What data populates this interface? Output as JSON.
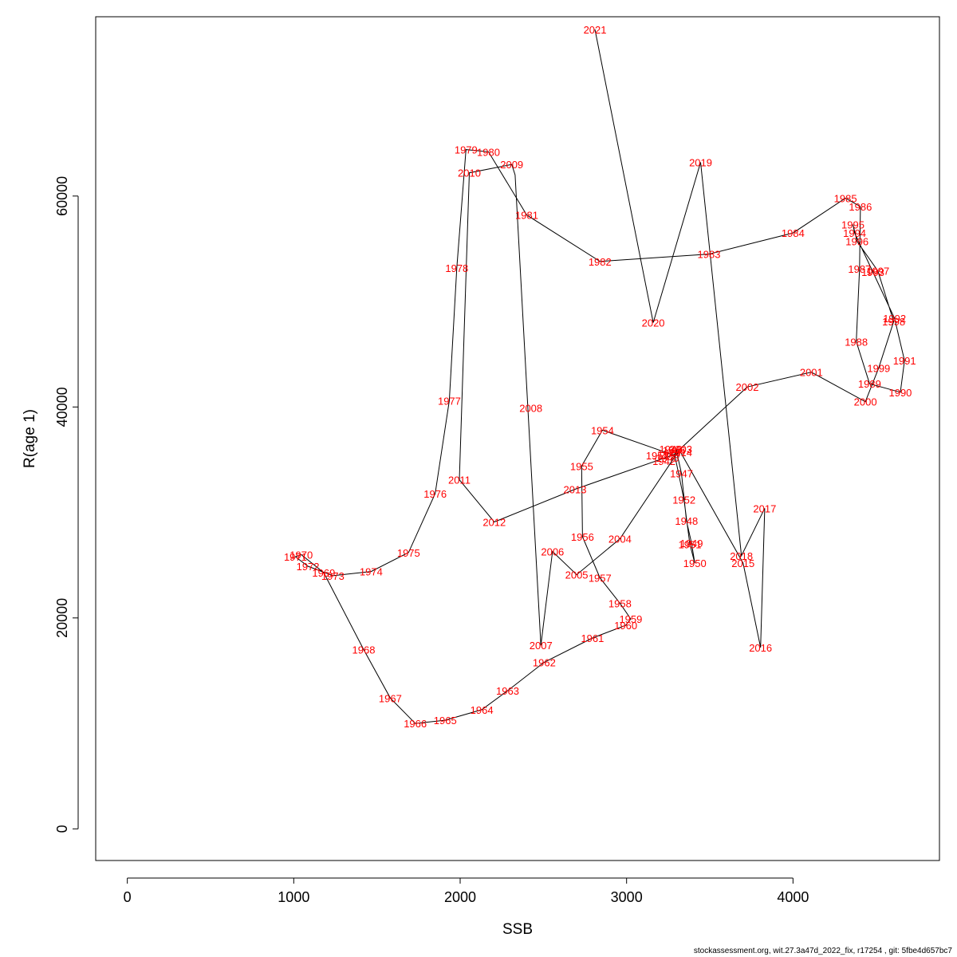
{
  "chart_data": {
    "type": "line",
    "title": "",
    "xlabel": "SSB",
    "ylabel": "R(age 1)",
    "xlim": [
      -190,
      4880
    ],
    "ylim": [
      -3000,
      77000
    ],
    "x_ticks": [
      0,
      1000,
      2000,
      3000,
      4000
    ],
    "y_ticks": [
      0,
      20000,
      40000,
      60000
    ],
    "grid": false,
    "legend": "none",
    "series_color": "#000000",
    "label_color": "#ff0000",
    "points": [
      {
        "year": "1942",
        "x": 3270,
        "y": 35000
      },
      {
        "year": "1943",
        "x": 3305,
        "y": 36000
      },
      {
        "year": "1944",
        "x": 3295,
        "y": 35500
      },
      {
        "year": "1945",
        "x": 3290,
        "y": 35200
      },
      {
        "year": "1946",
        "x": 3300,
        "y": 35800
      },
      {
        "year": "1947",
        "x": 3330,
        "y": 33700
      },
      {
        "year": "1948",
        "x": 3360,
        "y": 29200
      },
      {
        "year": "1949",
        "x": 3390,
        "y": 27100
      },
      {
        "year": "1950",
        "x": 3410,
        "y": 25200
      },
      {
        "year": "1951",
        "x": 3380,
        "y": 27000
      },
      {
        "year": "1952",
        "x": 3345,
        "y": 31200
      },
      {
        "year": "1953",
        "x": 3290,
        "y": 35400
      },
      {
        "year": "1954",
        "x": 2855,
        "y": 37800
      },
      {
        "year": "1955",
        "x": 2730,
        "y": 34400
      },
      {
        "year": "1956",
        "x": 2735,
        "y": 27700
      },
      {
        "year": "1957",
        "x": 2840,
        "y": 23800
      },
      {
        "year": "1958",
        "x": 2960,
        "y": 21400
      },
      {
        "year": "1959",
        "x": 3025,
        "y": 19900
      },
      {
        "year": "1960",
        "x": 2995,
        "y": 19300
      },
      {
        "year": "1961",
        "x": 2795,
        "y": 18100
      },
      {
        "year": "1962",
        "x": 2505,
        "y": 15800
      },
      {
        "year": "1963",
        "x": 2285,
        "y": 13100
      },
      {
        "year": "1964",
        "x": 2130,
        "y": 11300
      },
      {
        "year": "1965",
        "x": 1910,
        "y": 10300
      },
      {
        "year": "1966",
        "x": 1730,
        "y": 10000
      },
      {
        "year": "1967",
        "x": 1580,
        "y": 12400
      },
      {
        "year": "1968",
        "x": 1420,
        "y": 17000
      },
      {
        "year": "1969",
        "x": 1180,
        "y": 24300
      },
      {
        "year": "1970",
        "x": 1045,
        "y": 26000
      },
      {
        "year": "1971",
        "x": 1010,
        "y": 25800
      },
      {
        "year": "1972",
        "x": 1085,
        "y": 24900
      },
      {
        "year": "1973",
        "x": 1235,
        "y": 24000
      },
      {
        "year": "1974",
        "x": 1465,
        "y": 24400
      },
      {
        "year": "1975",
        "x": 1690,
        "y": 26200
      },
      {
        "year": "1976",
        "x": 1850,
        "y": 31800
      },
      {
        "year": "1977",
        "x": 1935,
        "y": 40600
      },
      {
        "year": "1978",
        "x": 1980,
        "y": 53200
      },
      {
        "year": "1979",
        "x": 2035,
        "y": 64400
      },
      {
        "year": "1980",
        "x": 2170,
        "y": 64200
      },
      {
        "year": "1981",
        "x": 2400,
        "y": 58200
      },
      {
        "year": "1982",
        "x": 2840,
        "y": 53800
      },
      {
        "year": "1983",
        "x": 3495,
        "y": 54500
      },
      {
        "year": "1984",
        "x": 4000,
        "y": 56500
      },
      {
        "year": "1985",
        "x": 4315,
        "y": 59800
      },
      {
        "year": "1986",
        "x": 4405,
        "y": 59000
      },
      {
        "year": "1987",
        "x": 4400,
        "y": 53100
      },
      {
        "year": "1988",
        "x": 4380,
        "y": 46200
      },
      {
        "year": "1989",
        "x": 4460,
        "y": 42200
      },
      {
        "year": "1990",
        "x": 4645,
        "y": 41400
      },
      {
        "year": "1991",
        "x": 4670,
        "y": 44400
      },
      {
        "year": "1992",
        "x": 4610,
        "y": 48400
      },
      {
        "year": "1993",
        "x": 4480,
        "y": 52800
      },
      {
        "year": "1994",
        "x": 4370,
        "y": 56500
      },
      {
        "year": "1995",
        "x": 4360,
        "y": 57300
      },
      {
        "year": "1996",
        "x": 4385,
        "y": 55700
      },
      {
        "year": "1997",
        "x": 4510,
        "y": 52900
      },
      {
        "year": "1998",
        "x": 4605,
        "y": 48100
      },
      {
        "year": "1999",
        "x": 4515,
        "y": 43700
      },
      {
        "year": "2000",
        "x": 4435,
        "y": 40500
      },
      {
        "year": "2001",
        "x": 4110,
        "y": 43300
      },
      {
        "year": "2002",
        "x": 3725,
        "y": 41900
      },
      {
        "year": "2003",
        "x": 3320,
        "y": 36000
      },
      {
        "year": "2004",
        "x": 2960,
        "y": 27500
      },
      {
        "year": "2005",
        "x": 2700,
        "y": 24100
      },
      {
        "year": "2006",
        "x": 2555,
        "y": 26300
      },
      {
        "year": "2007",
        "x": 2485,
        "y": 17400
      },
      {
        "year": "2008",
        "x": 2330,
        "y": 62000
      },
      {
        "year": "2009",
        "x": 2310,
        "y": 63000
      },
      {
        "year": "2010",
        "x": 2055,
        "y": 62200
      },
      {
        "year": "2011",
        "x": 1995,
        "y": 33100
      },
      {
        "year": "2012",
        "x": 2205,
        "y": 29100
      },
      {
        "year": "2013",
        "x": 2690,
        "y": 32200
      },
      {
        "year": "2014",
        "x": 3325,
        "y": 35700
      },
      {
        "year": "2015",
        "x": 3700,
        "y": 25200
      },
      {
        "year": "2016",
        "x": 3805,
        "y": 17200
      },
      {
        "year": "2017",
        "x": 3830,
        "y": 30400
      },
      {
        "year": "2018",
        "x": 3690,
        "y": 25900
      },
      {
        "year": "2019",
        "x": 3445,
        "y": 63200
      },
      {
        "year": "2020",
        "x": 3160,
        "y": 48000
      },
      {
        "year": "2021",
        "x": 2810,
        "y": 75800
      }
    ],
    "label_positions": {
      "1942": [
        3225,
        34900
      ],
      "1943": [
        3265,
        36000
      ],
      "1944": [
        3255,
        35600
      ],
      "1945": [
        3245,
        35200
      ],
      "1946": [
        3285,
        35900
      ],
      "1947": [
        3330,
        33700
      ],
      "1948": [
        3360,
        29200
      ],
      "1949": [
        3390,
        27100
      ],
      "1950": [
        3410,
        25200
      ],
      "1951": [
        3380,
        27000
      ],
      "1952": [
        3345,
        31200
      ],
      "1953": [
        3185,
        35400
      ],
      "1954": [
        2855,
        37800
      ],
      "1955": [
        2730,
        34400
      ],
      "1956": [
        2735,
        27700
      ],
      "1957": [
        2840,
        23800
      ],
      "1958": [
        2960,
        21400
      ],
      "1959": [
        3025,
        19900
      ],
      "1960": [
        2995,
        19300
      ],
      "1961": [
        2795,
        18100
      ],
      "1962": [
        2505,
        15800
      ],
      "1963": [
        2285,
        13100
      ],
      "1964": [
        2130,
        11300
      ],
      "1965": [
        1910,
        10300
      ],
      "1966": [
        1730,
        10000
      ],
      "1967": [
        1580,
        12400
      ],
      "1968": [
        1420,
        17000
      ],
      "1969": [
        1180,
        24300
      ],
      "1970": [
        1045,
        26000
      ],
      "1971": [
        1010,
        25800
      ],
      "1972": [
        1085,
        24900
      ],
      "1973": [
        1235,
        24000
      ],
      "1974": [
        1465,
        24400
      ],
      "1975": [
        1690,
        26200
      ],
      "1976": [
        1850,
        31800
      ],
      "1977": [
        1935,
        40600
      ],
      "1978": [
        1980,
        53200
      ],
      "1979": [
        2035,
        64400
      ],
      "1980": [
        2170,
        64200
      ],
      "1981": [
        2400,
        58200
      ],
      "1982": [
        2840,
        53800
      ],
      "1983": [
        3495,
        54500
      ],
      "1984": [
        4000,
        56500
      ],
      "1985": [
        4315,
        59800
      ],
      "1986": [
        4405,
        59000
      ],
      "1987": [
        4400,
        53100
      ],
      "1988": [
        4380,
        46200
      ],
      "1989": [
        4460,
        42200
      ],
      "1990": [
        4645,
        41400
      ],
      "1991": [
        4670,
        44400
      ],
      "1992": [
        4610,
        48400
      ],
      "1993": [
        4480,
        52800
      ],
      "1994": [
        4370,
        56500
      ],
      "1995": [
        4360,
        57300
      ],
      "1996": [
        4385,
        55700
      ],
      "1997": [
        4510,
        52900
      ],
      "1998": [
        4605,
        48100
      ],
      "1999": [
        4515,
        43700
      ],
      "2000": [
        4435,
        40500
      ],
      "2001": [
        4110,
        43300
      ],
      "2002": [
        3725,
        41900
      ],
      "2003": [
        3325,
        36000
      ],
      "2004": [
        2960,
        27500
      ],
      "2005": [
        2700,
        24100
      ],
      "2006": [
        2555,
        26300
      ],
      "2007": [
        2485,
        17400
      ],
      "2008": [
        2425,
        39900
      ],
      "2009": [
        2310,
        63000
      ],
      "2010": [
        2055,
        62200
      ],
      "2011": [
        1995,
        33100
      ],
      "2012": [
        2205,
        29100
      ],
      "2013": [
        2690,
        32200
      ],
      "2014": [
        3325,
        35700
      ],
      "2015": [
        3700,
        25200
      ],
      "2016": [
        3805,
        17200
      ],
      "2017": [
        3830,
        30400
      ],
      "2018": [
        3690,
        25900
      ],
      "2019": [
        3445,
        63200
      ],
      "2020": [
        3160,
        48000
      ],
      "2021": [
        2810,
        75800
      ]
    }
  },
  "footer": "stockassessment.org, wit.27.3a47d_2022_fix, r17254 , git: 5fbe4d657bc7"
}
